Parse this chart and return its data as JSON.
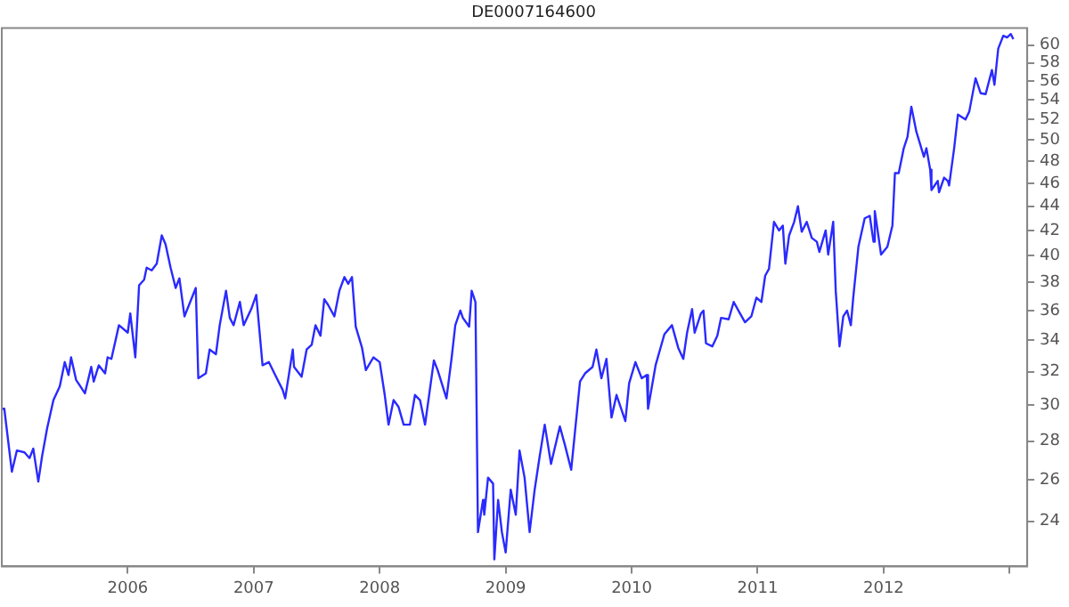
{
  "chart_data": {
    "type": "line",
    "title": "DE0007164600",
    "x": [
      2005.0,
      2005.02,
      2005.08,
      2005.12,
      2005.18,
      2005.22,
      2005.25,
      2005.29,
      2005.32,
      2005.36,
      2005.41,
      2005.46,
      2005.5,
      2005.53,
      2005.55,
      2005.59,
      2005.66,
      2005.71,
      2005.73,
      2005.77,
      2005.82,
      2005.84,
      2005.87,
      2005.93,
      2006.0,
      2006.02,
      2006.06,
      2006.09,
      2006.13,
      2006.15,
      2006.19,
      2006.23,
      2006.27,
      2006.3,
      2006.34,
      2006.38,
      2006.41,
      2006.45,
      2006.54,
      2006.56,
      2006.62,
      2006.65,
      2006.7,
      2006.73,
      2006.78,
      2006.81,
      2006.84,
      2006.89,
      2006.92,
      2006.98,
      2007.02,
      2007.07,
      2007.12,
      2007.17,
      2007.23,
      2007.25,
      2007.31,
      2007.32,
      2007.38,
      2007.42,
      2007.46,
      2007.49,
      2007.53,
      2007.56,
      2007.59,
      2007.64,
      2007.68,
      2007.72,
      2007.75,
      2007.78,
      2007.81,
      2007.86,
      2007.89,
      2007.95,
      2008.0,
      2008.04,
      2008.07,
      2008.11,
      2008.15,
      2008.19,
      2008.24,
      2008.28,
      2008.32,
      2008.36,
      2008.43,
      2008.46,
      2008.53,
      2008.57,
      2008.6,
      2008.64,
      2008.66,
      2008.71,
      2008.73,
      2008.76,
      2008.78,
      2008.82,
      2008.83,
      2008.86,
      2008.9,
      2008.91,
      2008.94,
      2008.97,
      2009.0,
      2009.04,
      2009.08,
      2009.11,
      2009.15,
      2009.19,
      2009.23,
      2009.27,
      2009.31,
      2009.36,
      2009.43,
      2009.47,
      2009.52,
      2009.59,
      2009.63,
      2009.69,
      2009.72,
      2009.76,
      2009.8,
      2009.84,
      2009.88,
      2009.95,
      2009.98,
      2010.03,
      2010.08,
      2010.12,
      2010.13,
      2010.19,
      2010.26,
      2010.32,
      2010.37,
      2010.41,
      2010.44,
      2010.48,
      2010.5,
      2010.55,
      2010.57,
      2010.59,
      2010.64,
      2010.68,
      2010.71,
      2010.77,
      2010.81,
      2010.86,
      2010.9,
      2010.95,
      2010.99,
      2011.03,
      2011.06,
      2011.09,
      2011.13,
      2011.17,
      2011.2,
      2011.22,
      2011.25,
      2011.29,
      2011.32,
      2011.35,
      2011.39,
      2011.43,
      2011.47,
      2011.49,
      2011.54,
      2011.56,
      2011.6,
      2011.62,
      2011.65,
      2011.68,
      2011.71,
      2011.74,
      2011.76,
      2011.8,
      2011.85,
      2011.89,
      2011.92,
      2011.93,
      2011.98,
      2012.03,
      2012.07,
      2012.09,
      2012.12,
      2012.16,
      2012.19,
      2012.22,
      2012.26,
      2012.32,
      2012.34,
      2012.37,
      2012.38,
      2012.43,
      2012.44,
      2012.48,
      2012.51,
      2012.52,
      2012.56,
      2012.59,
      2012.65,
      2012.68,
      2012.73,
      2012.77,
      2012.81,
      2012.86,
      2012.88,
      2012.91,
      2012.95,
      2012.98,
      2013.01,
      2013.03
    ],
    "series": [
      {
        "color": "#2a2aff",
        "values": [
          29.8,
          29.8,
          26.4,
          27.5,
          27.4,
          27.1,
          27.6,
          25.9,
          27.2,
          28.7,
          30.3,
          31.1,
          32.6,
          31.8,
          32.9,
          31.5,
          30.7,
          32.3,
          31.4,
          32.4,
          31.9,
          32.9,
          32.8,
          35.0,
          34.5,
          35.8,
          32.9,
          37.8,
          38.2,
          39.1,
          38.9,
          39.4,
          41.6,
          40.9,
          39.1,
          37.6,
          38.3,
          35.6,
          37.6,
          31.6,
          31.9,
          33.4,
          33.1,
          35.0,
          37.4,
          35.5,
          35.0,
          36.6,
          35.0,
          36.1,
          37.1,
          32.4,
          32.6,
          31.8,
          30.9,
          30.4,
          33.4,
          32.3,
          31.7,
          33.4,
          33.7,
          35.0,
          34.3,
          36.8,
          36.4,
          35.6,
          37.4,
          38.4,
          37.9,
          38.4,
          34.9,
          33.5,
          32.1,
          32.9,
          32.6,
          30.6,
          28.9,
          30.3,
          29.9,
          28.9,
          28.9,
          30.6,
          30.3,
          28.9,
          32.7,
          32.1,
          30.4,
          32.8,
          35.0,
          36.0,
          35.5,
          34.9,
          37.4,
          36.6,
          23.5,
          25.0,
          24.3,
          26.1,
          25.8,
          22.3,
          25.0,
          23.5,
          22.6,
          25.5,
          24.3,
          27.5,
          26.1,
          23.5,
          25.5,
          27.2,
          28.9,
          26.8,
          28.8,
          27.8,
          26.5,
          31.4,
          31.9,
          32.3,
          33.4,
          31.6,
          32.8,
          29.3,
          30.6,
          29.1,
          31.3,
          32.6,
          31.6,
          31.8,
          29.8,
          32.4,
          34.4,
          35.0,
          33.5,
          32.8,
          34.5,
          36.1,
          34.5,
          35.8,
          36.0,
          33.8,
          33.6,
          34.3,
          35.5,
          35.4,
          36.6,
          35.8,
          35.2,
          35.6,
          36.9,
          36.6,
          38.5,
          39.0,
          42.7,
          42.0,
          42.4,
          39.4,
          41.6,
          42.7,
          44.0,
          41.9,
          42.7,
          41.4,
          41.1,
          40.3,
          42.0,
          40.1,
          42.7,
          37.4,
          33.6,
          35.6,
          36.0,
          35.0,
          37.0,
          40.7,
          43.0,
          43.2,
          41.1,
          43.6,
          40.1,
          40.7,
          42.4,
          46.9,
          46.9,
          49.2,
          50.3,
          53.3,
          50.8,
          48.4,
          49.2,
          47.2,
          45.4,
          46.2,
          45.2,
          46.5,
          46.2,
          45.8,
          49.2,
          52.5,
          52.0,
          52.8,
          56.3,
          54.7,
          54.6,
          57.2,
          55.6,
          59.6,
          61.1,
          60.9,
          61.3,
          60.7
        ]
      }
    ],
    "xlim": [
      2005,
      2013.14
    ],
    "xticks": [
      2006,
      2007,
      2008,
      2009,
      2010,
      2011,
      2012,
      {
        "value": 2013,
        "label": null
      }
    ],
    "ylim": [
      22,
      62
    ],
    "yticks": [
      24,
      26,
      28,
      30,
      32,
      34,
      36,
      38,
      40,
      42,
      44,
      46,
      48,
      50,
      52,
      54,
      56,
      58,
      60
    ],
    "log": "y",
    "grid": false,
    "legend": false,
    "marker": "none",
    "line_style": "solid"
  }
}
